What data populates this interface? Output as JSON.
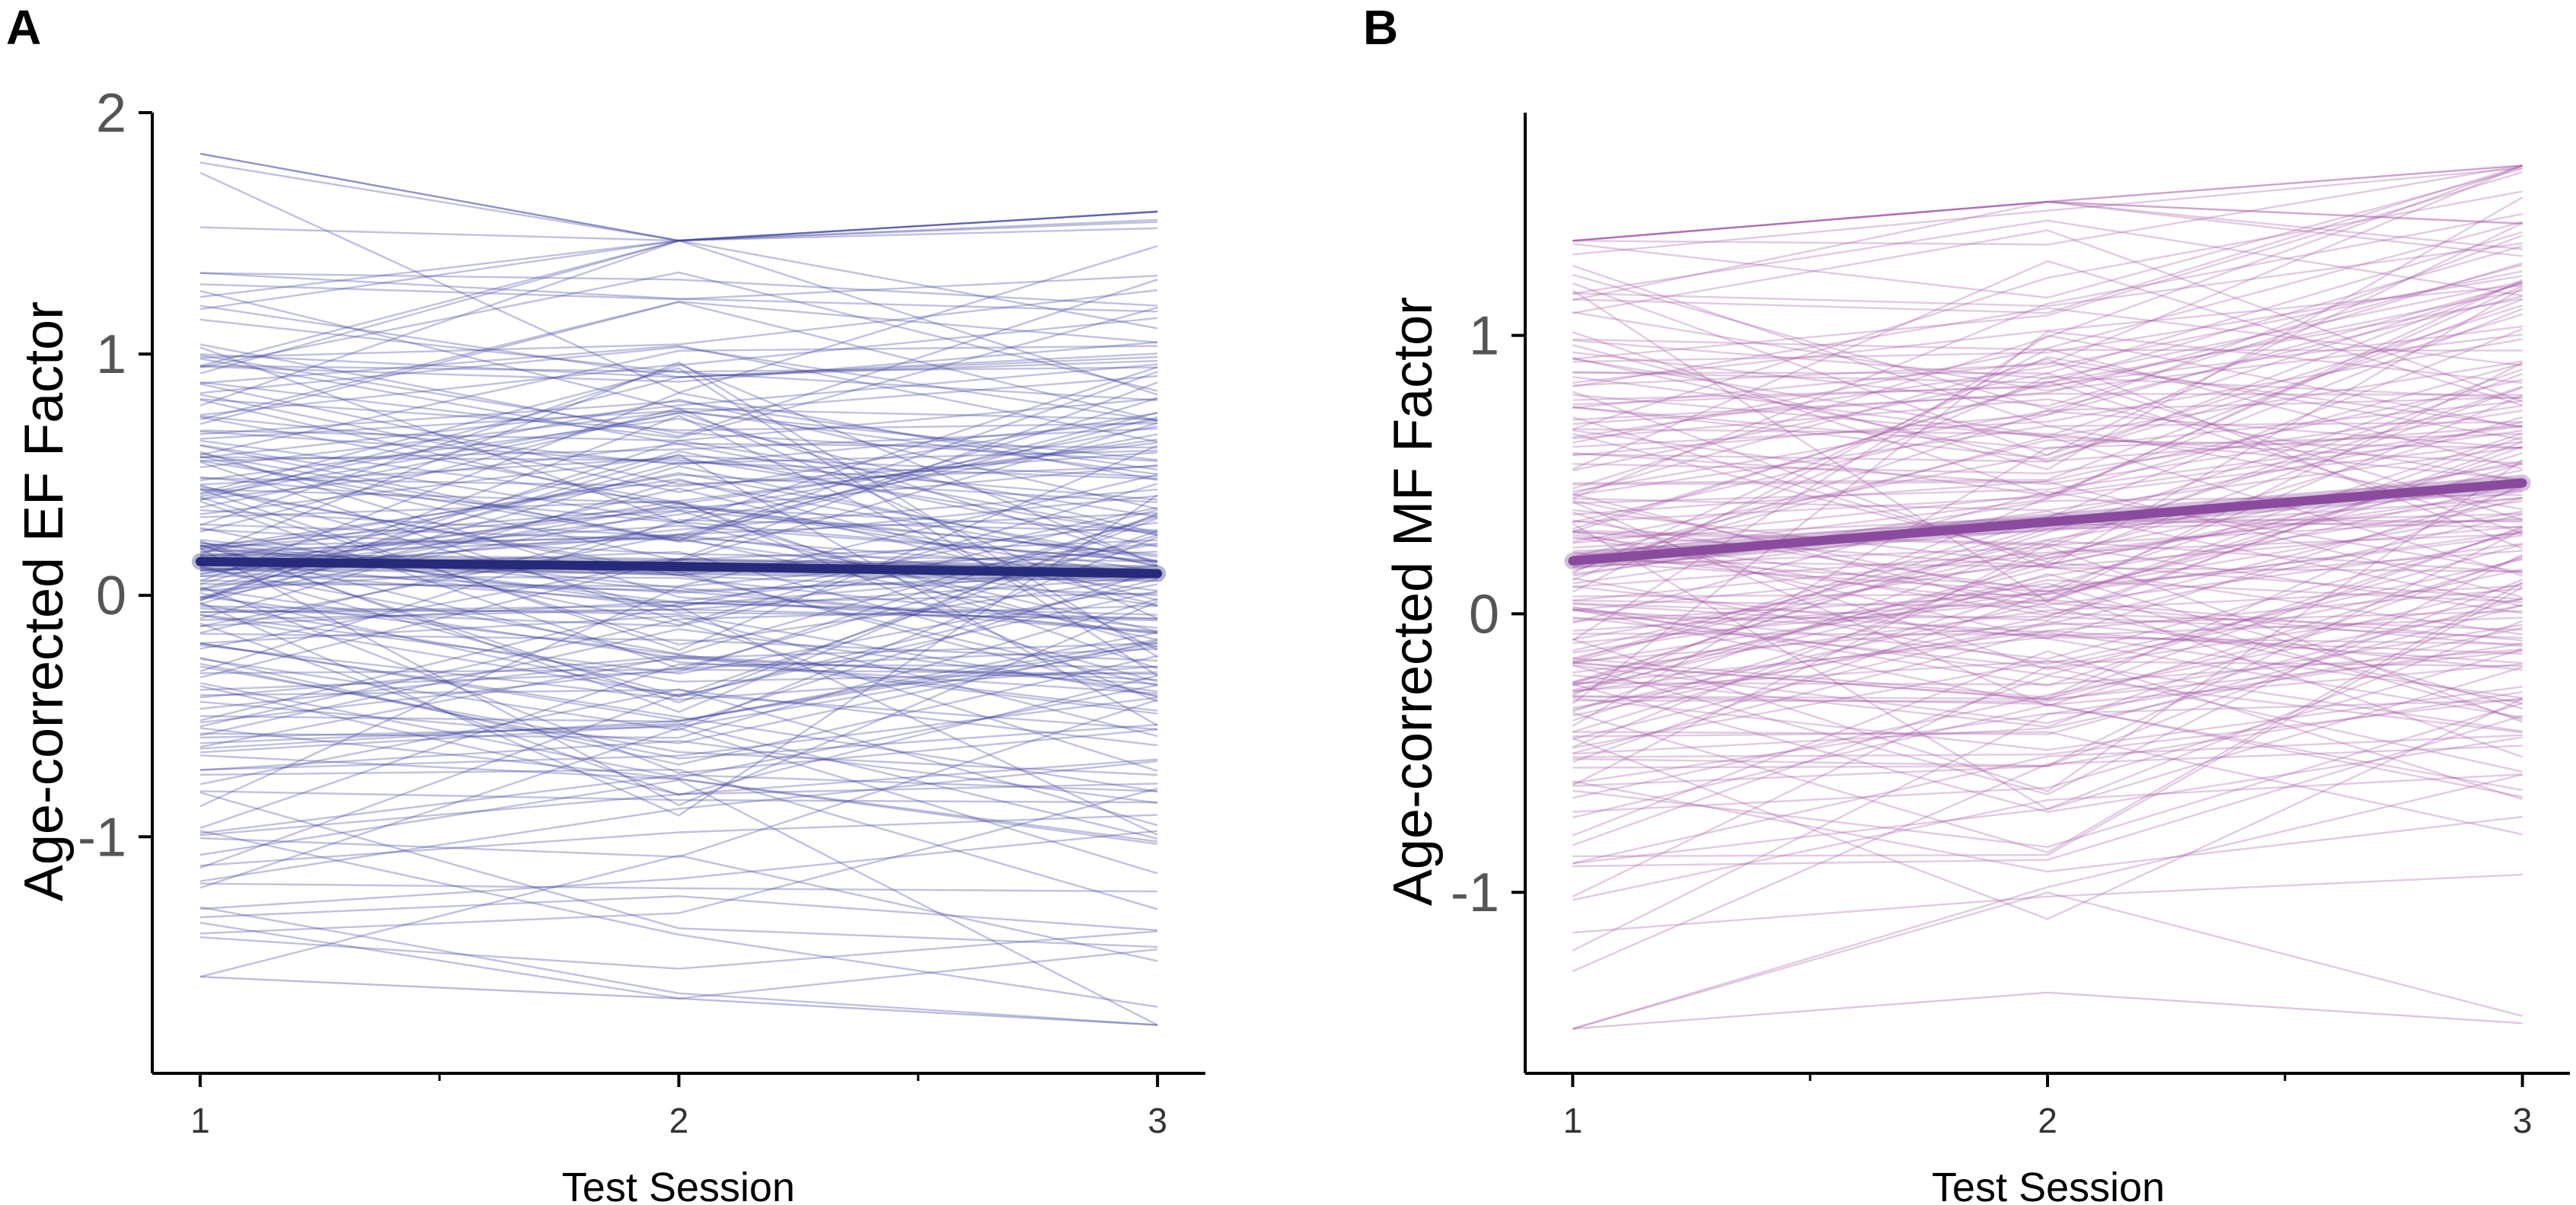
{
  "chart_data": [
    {
      "panel": "A",
      "type": "line",
      "xlabel": "Test Session",
      "ylabel": "Age-corrected EF Factor",
      "x": [
        1,
        2,
        3
      ],
      "xlim": [
        0.9,
        3.1
      ],
      "ylim": [
        -1.98,
        2.0
      ],
      "yticks": [
        "-1",
        "0",
        "1",
        "2"
      ],
      "xticks": [
        "1",
        "2",
        "3"
      ],
      "line_color": "#3a3f9a",
      "mean_color": "#262a7a",
      "mean": {
        "name": "group mean",
        "values": [
          0.14,
          0.12,
          0.09
        ]
      },
      "n_individual_lines": 200,
      "series_envelope": {
        "min": [
          -1.58,
          -1.67,
          -1.78
        ],
        "max": [
          1.83,
          1.47,
          1.59
        ]
      }
    },
    {
      "panel": "B",
      "type": "line",
      "xlabel": "Test Session",
      "ylabel": "Age-corrected MF Factor",
      "x": [
        1,
        2,
        3
      ],
      "xlim": [
        0.9,
        3.1
      ],
      "ylim": [
        -1.65,
        1.8
      ],
      "yticks": [
        "-1",
        "0",
        "1"
      ],
      "xticks": [
        "1",
        "2",
        "3"
      ],
      "line_color": "#a65aa8",
      "mean_color": "#8a4a9e",
      "mean": {
        "name": "group mean",
        "values": [
          0.19,
          0.33,
          0.47
        ]
      },
      "n_individual_lines": 200,
      "series_envelope": {
        "min": [
          -1.49,
          -1.36,
          -1.47
        ],
        "max": [
          1.34,
          1.48,
          1.61
        ]
      }
    }
  ]
}
